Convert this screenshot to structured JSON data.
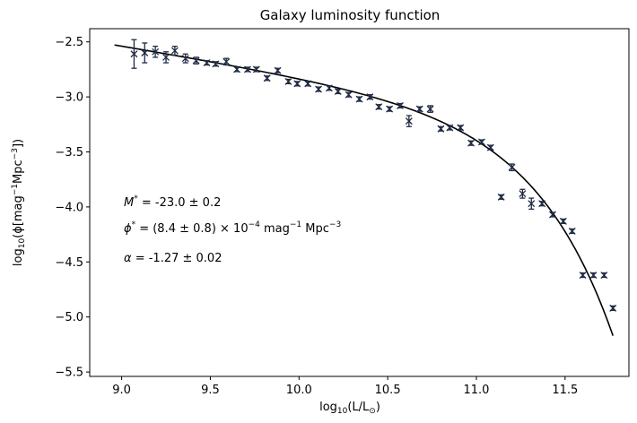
{
  "chart_data": {
    "type": "scatter",
    "title": "Galaxy luminosity function",
    "xlabel": "log10(L/L⊙)",
    "ylabel": "log10(ϕ[mag⁻¹Mpc⁻³])",
    "xlim": [
      8.82,
      11.86
    ],
    "ylim": [
      -5.54,
      -2.38
    ],
    "xticks": [
      9.0,
      9.5,
      10.0,
      10.5,
      11.0,
      11.5
    ],
    "xtick_labels": [
      "9.0",
      "9.5",
      "10.0",
      "10.5",
      "11.0",
      "11.5"
    ],
    "yticks": [
      -2.5,
      -3.0,
      -3.5,
      -4.0,
      -4.5,
      -5.0,
      -5.5
    ],
    "ytick_labels": [
      "−2.5",
      "−3.0",
      "−3.5",
      "−4.0",
      "−4.5",
      "−5.0",
      "−5.5"
    ],
    "grid": false,
    "series": [
      {
        "kind": "errorbar",
        "color": "#1f2a44",
        "marker": "x",
        "x": [
          9.07,
          9.13,
          9.19,
          9.25,
          9.3,
          9.36,
          9.42,
          9.48,
          9.53,
          9.59,
          9.65,
          9.71,
          9.76,
          9.82,
          9.88,
          9.94,
          9.99,
          10.05,
          10.11,
          10.17,
          10.22,
          10.28,
          10.34,
          10.4,
          10.45,
          10.51,
          10.57,
          10.62,
          10.68,
          10.74,
          10.8,
          10.85,
          10.91,
          10.97,
          11.03,
          11.08,
          11.14,
          11.2,
          11.26,
          11.31,
          11.37,
          11.43,
          11.49,
          11.54,
          11.6,
          11.66,
          11.72,
          11.77
        ],
        "y": [
          -2.61,
          -2.6,
          -2.59,
          -2.64,
          -2.58,
          -2.65,
          -2.67,
          -2.69,
          -2.7,
          -2.68,
          -2.75,
          -2.75,
          -2.75,
          -2.83,
          -2.76,
          -2.86,
          -2.88,
          -2.88,
          -2.93,
          -2.92,
          -2.95,
          -2.98,
          -3.02,
          -3.0,
          -3.09,
          -3.11,
          -3.08,
          -3.22,
          -3.11,
          -3.11,
          -3.29,
          -3.28,
          -3.28,
          -3.42,
          -3.41,
          -3.46,
          -3.91,
          -3.64,
          -3.88,
          -3.97,
          -3.97,
          -4.07,
          -4.13,
          -4.22,
          -4.62,
          -4.62,
          -4.62,
          -4.92
        ],
        "yerr": [
          0.13,
          0.09,
          0.05,
          0.05,
          0.04,
          0.04,
          0.03,
          0.02,
          0.02,
          0.03,
          0.02,
          0.02,
          0.02,
          0.02,
          0.02,
          0.02,
          0.02,
          0.02,
          0.02,
          0.02,
          0.02,
          0.02,
          0.02,
          0.02,
          0.02,
          0.02,
          0.02,
          0.05,
          0.02,
          0.03,
          0.02,
          0.02,
          0.02,
          0.02,
          0.02,
          0.02,
          0.02,
          0.03,
          0.04,
          0.05,
          0.02,
          0.02,
          0.02,
          0.02,
          0.02,
          0.02,
          0.02,
          0.02
        ]
      },
      {
        "kind": "line",
        "color": "#000000",
        "function": "schechter",
        "x_start": 8.96,
        "x_end": 11.77
      }
    ],
    "annotations": [
      {
        "id": "mstar",
        "text": "M* = -23.0 ± 0.2"
      },
      {
        "id": "phistar",
        "text": "ϕ* = (8.4 ± 0.8) × 10⁻⁴ mag⁻¹ Mpc⁻³"
      },
      {
        "id": "alpha",
        "text": "α = -1.27 ± 0.02"
      }
    ]
  }
}
